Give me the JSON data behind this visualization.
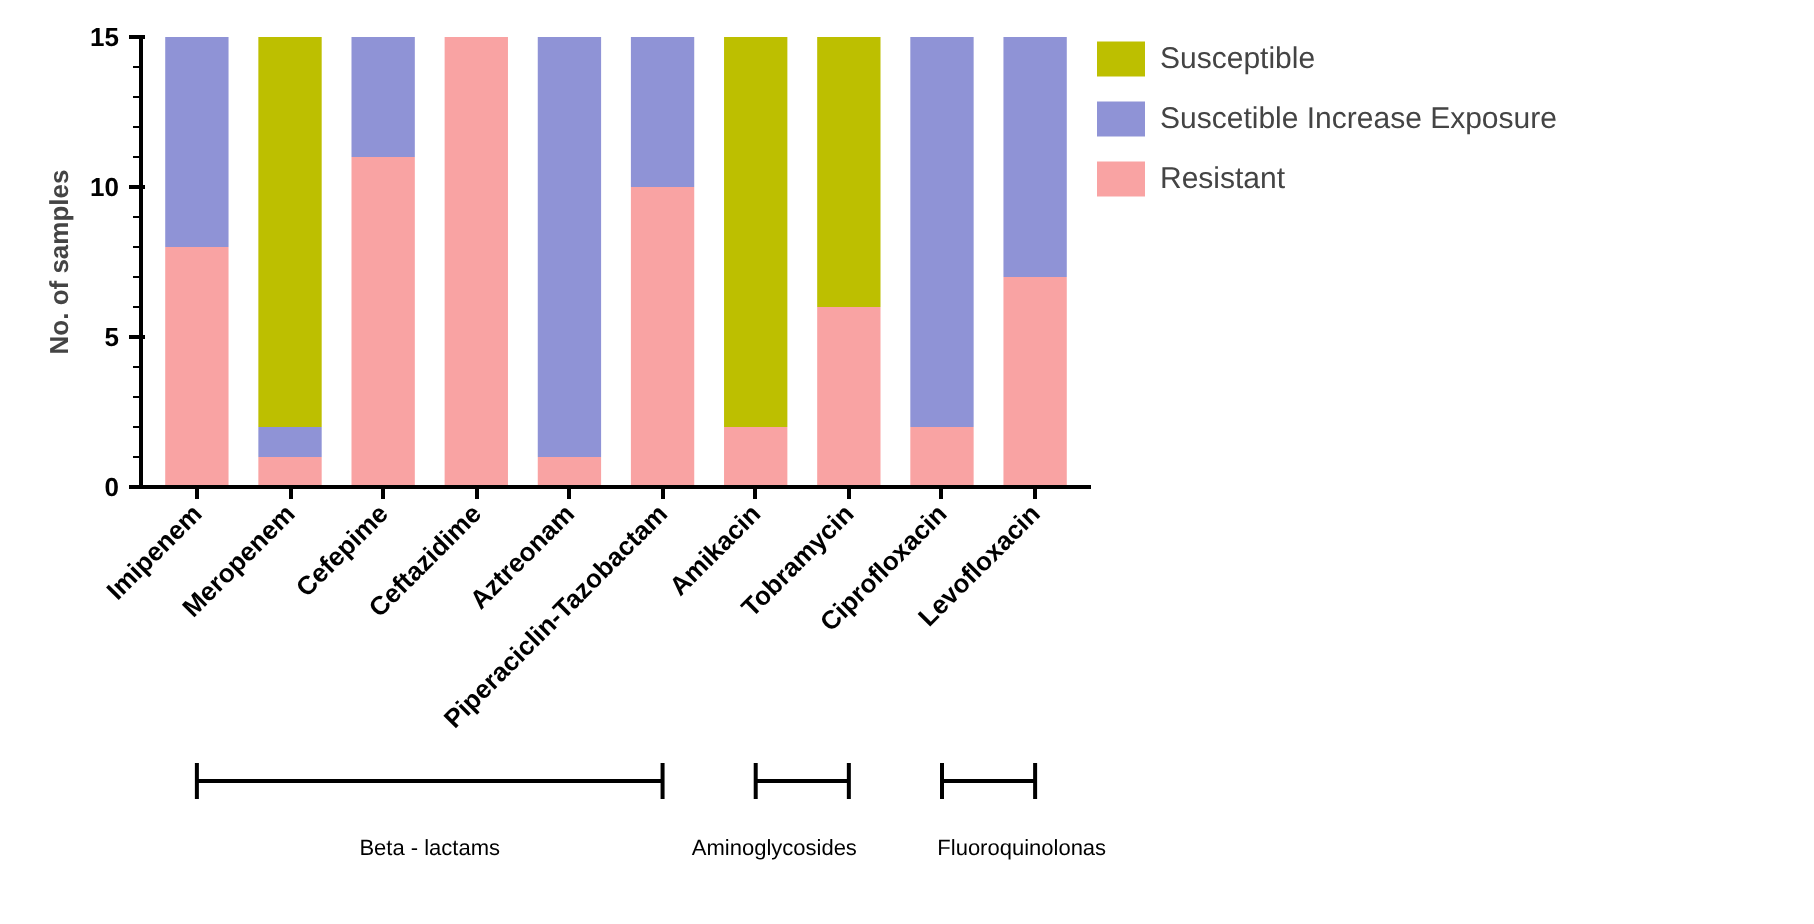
{
  "chart_data": {
    "type": "bar",
    "stacked": true,
    "ylabel": "No. of samples",
    "categories": [
      "Imipenem",
      "Meropenem",
      "Cefepime",
      "Ceftazidime",
      "Aztreonam",
      "Piperaciclin-Tazobactam",
      "Amikacin",
      "Tobramycin",
      "Ciprofloxacin",
      "Levofloxacin"
    ],
    "series": [
      {
        "name": "Resistant",
        "color": "#f9a3a3",
        "values": [
          8,
          1,
          11,
          15,
          1,
          10,
          2,
          6,
          2,
          7
        ]
      },
      {
        "name": "Suscetible Increase Exposure",
        "color": "#8f93d6",
        "values": [
          7,
          1,
          4,
          0,
          14,
          5,
          0,
          0,
          13,
          8
        ]
      },
      {
        "name": "Susceptible",
        "color": "#bdbf00",
        "values": [
          0,
          13,
          0,
          0,
          0,
          0,
          13,
          9,
          0,
          0
        ]
      }
    ],
    "ylim": [
      0,
      15
    ],
    "yticks": [
      0,
      5,
      10,
      15
    ],
    "grid": false,
    "legend": "top right",
    "annotations": [
      "Beta - lactams",
      "Aminoglycosides",
      "Fluoroquinolonas"
    ]
  }
}
